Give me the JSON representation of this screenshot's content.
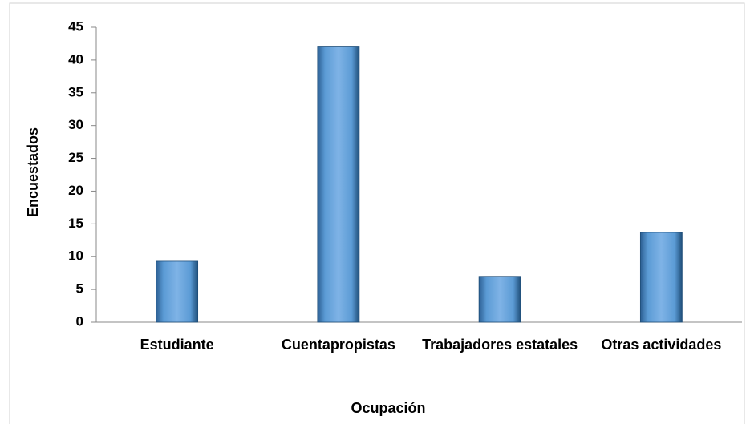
{
  "chart_data": {
    "type": "bar",
    "categories": [
      "Estudiante",
      "Cuentapropistas",
      "Trabajadores estatales",
      "Otras actividades"
    ],
    "values": [
      9.3,
      42,
      7,
      13.7
    ],
    "color": "#5b9bd5",
    "ylim": [
      0,
      45
    ],
    "yticks": [
      0,
      5,
      10,
      15,
      20,
      25,
      30,
      35,
      40,
      45
    ],
    "ylabel": "Encuestados",
    "xlabel": "Ocupación",
    "grid": false
  }
}
